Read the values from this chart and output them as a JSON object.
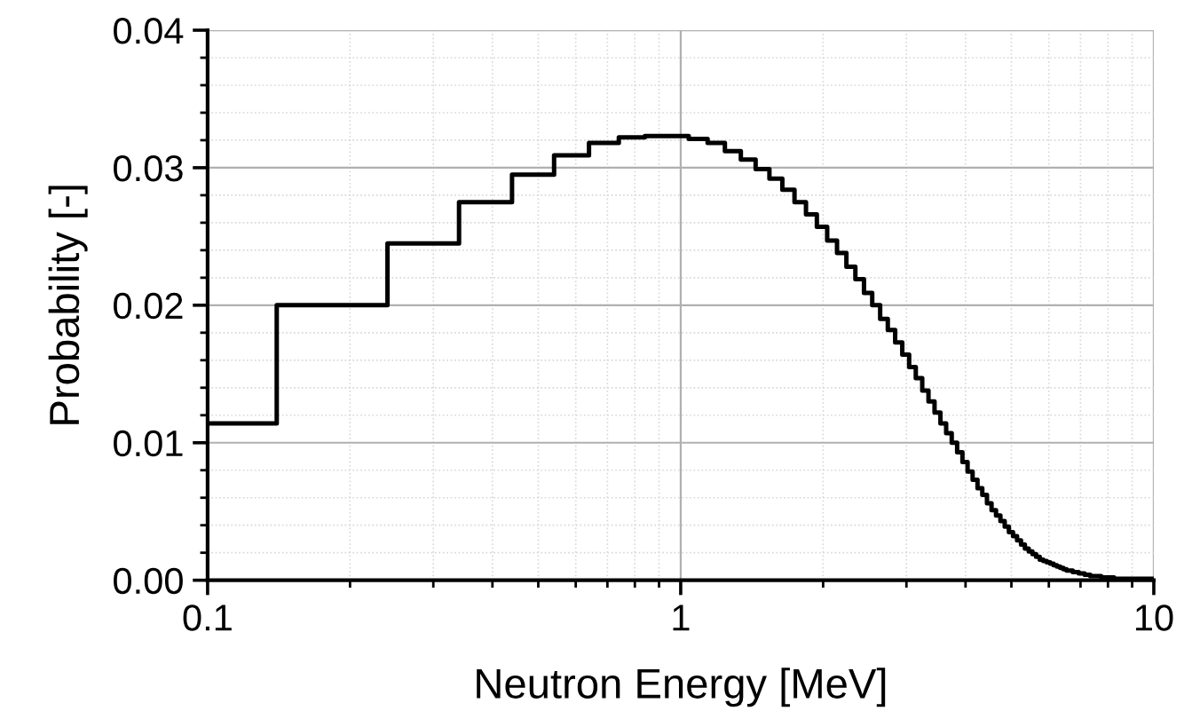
{
  "chart_data": {
    "type": "step",
    "xlabel": "Neutron Energy [MeV]",
    "ylabel": "Probability [-]",
    "log": "x",
    "grid": true,
    "line_style": "solid",
    "marker": "none",
    "xlim": [
      0.1,
      10
    ],
    "xticks": [
      {
        "value": 0.1,
        "label": "0.1"
      },
      1,
      10
    ],
    "ylim": [
      0,
      0.04
    ],
    "yticks": [
      {
        "value": 0,
        "label": "0.00"
      },
      {
        "value": 0.01,
        "label": "0.01"
      },
      {
        "value": 0.02,
        "label": "0.02"
      },
      {
        "value": 0.03,
        "label": "0.03"
      },
      {
        "value": 0.04,
        "label": "0.04"
      }
    ],
    "series": [
      {
        "color": "#000000",
        "x": [
          0.1,
          0.14,
          0.24,
          0.34,
          0.44,
          0.54,
          0.64,
          0.74,
          0.84,
          0.94,
          1.04,
          1.14,
          1.24,
          1.34,
          1.44,
          1.54,
          1.64,
          1.74,
          1.84,
          1.94,
          2.04,
          2.14,
          2.24,
          2.34,
          2.44,
          2.54,
          2.64,
          2.74,
          2.84,
          2.94,
          3.04,
          3.14,
          3.24,
          3.34,
          3.44,
          3.54,
          3.64,
          3.74,
          3.84,
          3.94,
          4.04,
          4.14,
          4.24,
          4.34,
          4.44,
          4.54,
          4.64,
          4.74,
          4.84,
          4.94,
          5.04,
          5.14,
          5.24,
          5.34,
          5.44,
          5.54,
          5.64,
          5.74,
          5.84,
          5.94,
          6.04,
          6.14,
          6.24,
          6.34,
          6.44,
          6.54,
          6.64,
          6.74,
          6.84,
          6.94,
          7.04,
          7.14,
          7.24,
          7.34,
          7.44,
          7.54,
          7.64,
          7.74,
          7.84,
          7.94,
          8.04,
          8.14,
          8.24,
          8.34,
          8.44,
          8.54,
          8.64,
          8.74,
          8.84,
          8.94,
          9.04,
          9.14,
          9.24,
          9.34,
          9.44,
          9.54,
          9.64,
          9.74,
          9.84,
          9.94,
          10
        ],
        "values": [
          0.0114,
          0.02,
          0.0245,
          0.0275,
          0.0295,
          0.0309,
          0.0318,
          0.0322,
          0.0323,
          0.0323,
          0.0321,
          0.0318,
          0.0312,
          0.0306,
          0.0299,
          0.0292,
          0.0284,
          0.0275,
          0.0266,
          0.0257,
          0.0247,
          0.0238,
          0.0228,
          0.0219,
          0.0209,
          0.02,
          0.019,
          0.0182,
          0.0173,
          0.0164,
          0.0155,
          0.0147,
          0.0138,
          0.013,
          0.0122,
          0.0114,
          0.0107,
          0.01,
          0.0093,
          0.0086,
          0.0079,
          0.0073,
          0.0067,
          0.0062,
          0.0056,
          0.0051,
          0.0047,
          0.0043,
          0.0039,
          0.0035,
          0.0032,
          0.0029,
          0.0026,
          0.0023,
          0.0021,
          0.0019,
          0.0017,
          0.0015,
          0.0014,
          0.0013,
          0.0012,
          0.0011,
          0.001,
          0.0009,
          0.0008,
          0.0007,
          0.0007,
          0.0006,
          0.0006,
          0.0005,
          0.0005,
          0.0004,
          0.0004,
          0.0003,
          0.0003,
          0.0003,
          0.0003,
          0.0002,
          0.0002,
          0.0002,
          0.0002,
          0.0002,
          0.0001,
          0.0001,
          0.0001,
          0.0001,
          0.0001,
          0.0001,
          0.0001,
          0.0001,
          0.0001,
          0.0001,
          0.0001,
          0.0001,
          0.0001,
          0.0001,
          0.0001,
          0.0001,
          0.0001,
          0.0001,
          0.0001
        ]
      }
    ]
  }
}
